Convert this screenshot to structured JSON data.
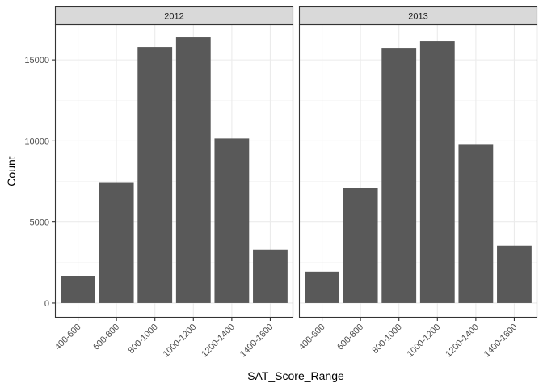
{
  "chart_data": {
    "type": "bar",
    "xlabel": "SAT_Score_Range",
    "ylabel": "Count",
    "categories": [
      "400-600",
      "600-800",
      "800-1000",
      "1000-1200",
      "1200-1400",
      "1400-1600"
    ],
    "ylim": [
      -900,
      17200
    ],
    "yticks": [
      0,
      5000,
      10000,
      15000
    ],
    "grid": true,
    "bar_color": "#595959",
    "strip_color": "#d9d9d9",
    "facets": [
      {
        "label": "2012",
        "values": [
          1650,
          7450,
          15800,
          16400,
          10150,
          3300
        ]
      },
      {
        "label": "2013",
        "values": [
          1950,
          7100,
          15700,
          16150,
          9800,
          3550
        ]
      }
    ]
  }
}
